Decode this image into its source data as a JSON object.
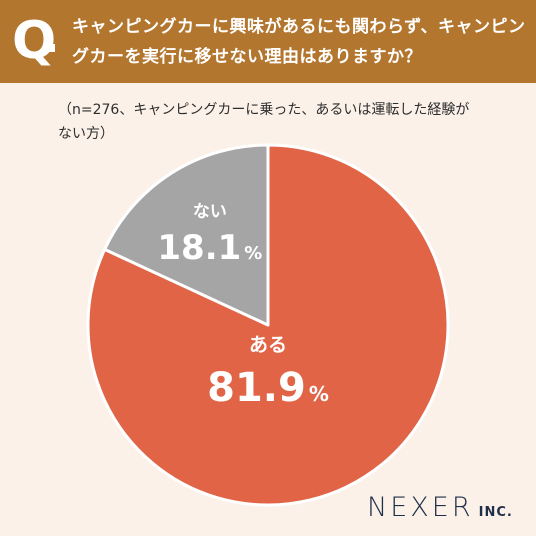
{
  "header": {
    "q_mark": "Q",
    "question": "キャンピングカーに興味があるにも関わらず、キャンピングカーを実行に移せない理由はありますか？"
  },
  "note": "（n=276、キャンピングカーに乗った、あるいは運転した経験がない方）",
  "chart_data": {
    "type": "pie",
    "categories": [
      "ある",
      "ない"
    ],
    "values": [
      81.9,
      18.1
    ],
    "value_suffix": "%",
    "colors": [
      "#e06445",
      "#a6a5a5"
    ],
    "start_angle": "12 o'clock",
    "direction": "clockwise"
  },
  "logo": {
    "main": "NEXER",
    "sub": "INC."
  }
}
